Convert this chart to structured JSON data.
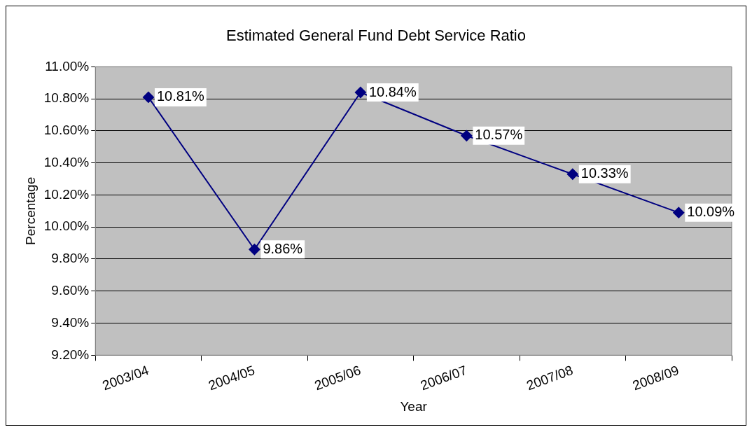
{
  "chart_data": {
    "type": "line",
    "title": "Estimated General Fund Debt Service Ratio",
    "xlabel": "Year",
    "ylabel": "Percentage",
    "categories": [
      "2003/04",
      "2004/05",
      "2005/06",
      "2006/07",
      "2007/08",
      "2008/09"
    ],
    "series": [
      {
        "color": "#000080",
        "values": [
          10.81,
          9.86,
          10.84,
          10.57,
          10.33,
          10.09
        ],
        "value_labels": [
          "10.81%",
          "9.86%",
          "10.84%",
          "10.57%",
          "10.33%",
          "10.09%"
        ]
      }
    ],
    "ylim": [
      9.2,
      11.0
    ],
    "yticks": [
      {
        "value": 9.2,
        "label": "9.20%"
      },
      {
        "value": 9.4,
        "label": "9.40%"
      },
      {
        "value": 9.6,
        "label": "9.60%"
      },
      {
        "value": 9.8,
        "label": "9.80%"
      },
      {
        "value": 10.0,
        "label": "10.00%"
      },
      {
        "value": 10.2,
        "label": "10.20%"
      },
      {
        "value": 10.4,
        "label": "10.40%"
      },
      {
        "value": 10.6,
        "label": "10.60%"
      },
      {
        "value": 10.8,
        "label": "10.80%"
      },
      {
        "value": 11.0,
        "label": "11.00%"
      }
    ],
    "grid": "y",
    "marker": "diamond",
    "line_style": "solid"
  }
}
